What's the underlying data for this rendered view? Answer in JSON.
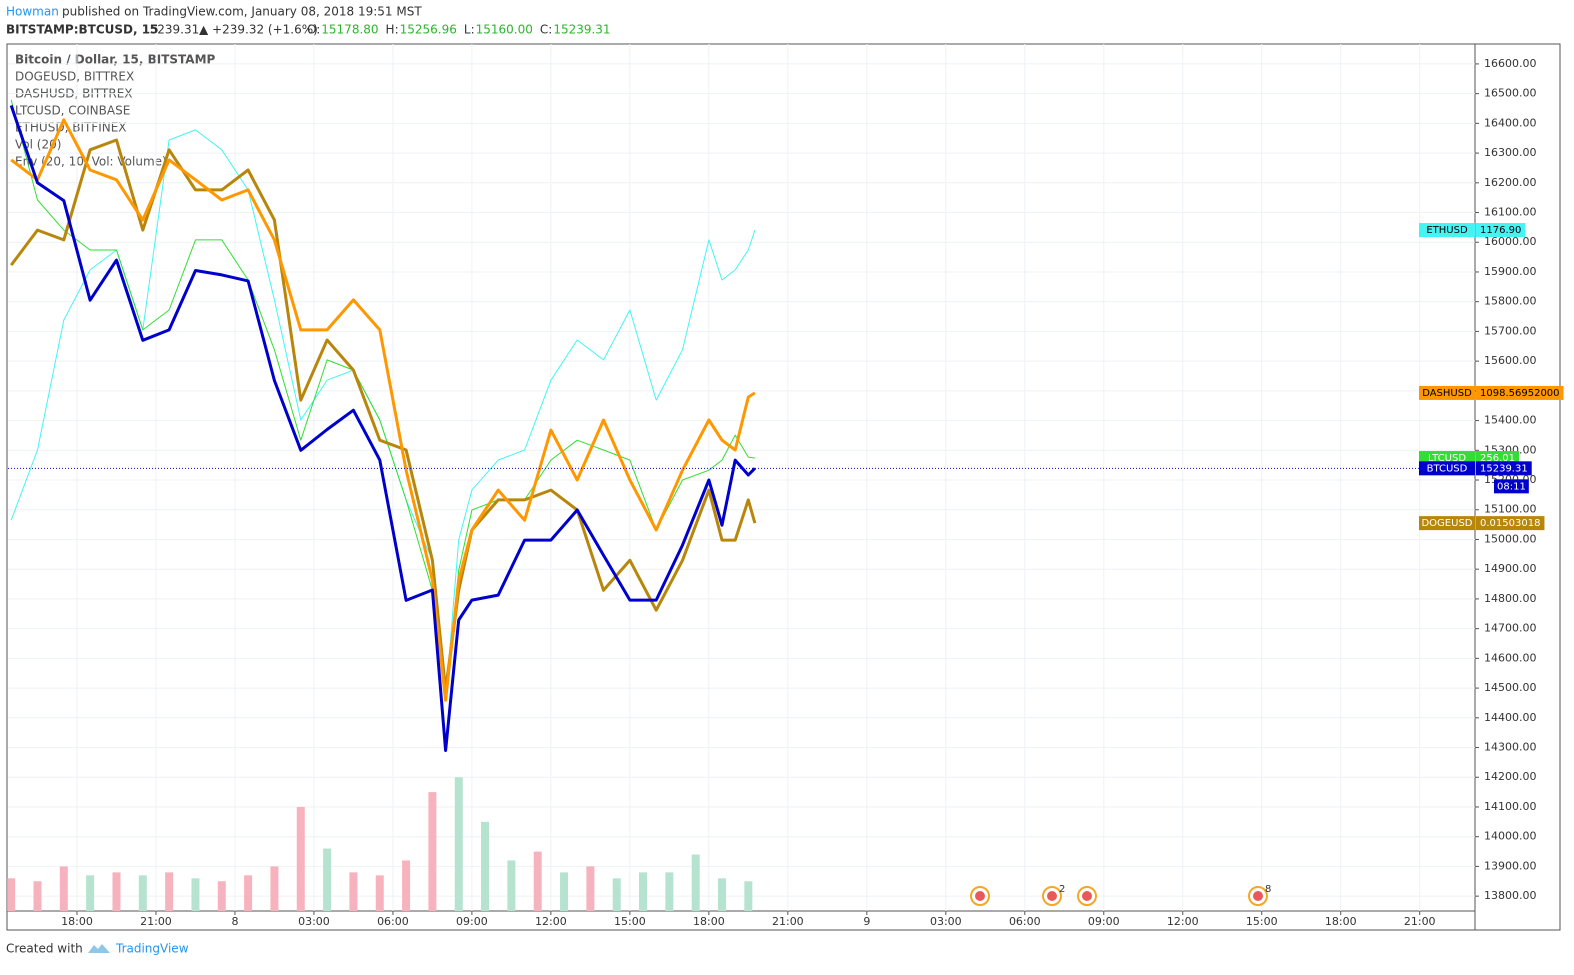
{
  "header": {
    "author": "Howman",
    "published": "published on TradingView.com, January 08, 2018 19:51 MST",
    "symbol": "BITSTAMP:BTCUSD, 15",
    "last": "15239.31",
    "change": "▲ +239.32 (+1.6%)",
    "ohlc": [
      {
        "key": "O:",
        "value": "15178.80"
      },
      {
        "key": "H:",
        "value": "15256.96"
      },
      {
        "key": "L:",
        "value": "15160.00"
      },
      {
        "key": "C:",
        "value": "15239.31"
      }
    ]
  },
  "legend": [
    "Bitcoin / Dollar, 15, BITSTAMP",
    "DOGEUSD, BITTREX",
    "DASHUSD, BITTREX",
    "LTCUSD, COINBASE",
    "ETHUSD, BITFINEX",
    "Vol (20)",
    "Env (20, 10, Vol: Volume)"
  ],
  "footer": {
    "created": "Created with",
    "brand": "TradingView"
  },
  "event_counts": [
    "2",
    "8"
  ],
  "chart_data": {
    "type": "line",
    "grid": true,
    "x": [
      15.5,
      16.5,
      17.5,
      18.5,
      19.5,
      20.5,
      21.5,
      22.5,
      23.5,
      24.5,
      25.5,
      26.5,
      27.5,
      28.5,
      29.5,
      30.5,
      31.5,
      32,
      32.5,
      33,
      34,
      35,
      36,
      37,
      38,
      39,
      40,
      41,
      42,
      42.5,
      43,
      43.5,
      43.75
    ],
    "xlim": [
      15.38,
      71.1
    ],
    "xticks": [
      {
        "value": 18,
        "label": "18:00"
      },
      {
        "value": 21,
        "label": "21:00"
      },
      {
        "value": 24,
        "label": "8"
      },
      {
        "value": 27,
        "label": "03:00"
      },
      {
        "value": 30,
        "label": "06:00"
      },
      {
        "value": 33,
        "label": "09:00"
      },
      {
        "value": 36,
        "label": "12:00"
      },
      {
        "value": 39,
        "label": "15:00"
      },
      {
        "value": 42,
        "label": "18:00"
      },
      {
        "value": 45,
        "label": "21:00"
      },
      {
        "value": 48,
        "label": "9"
      },
      {
        "value": 51,
        "label": "03:00"
      },
      {
        "value": 54,
        "label": "06:00"
      },
      {
        "value": 57,
        "label": "09:00"
      },
      {
        "value": 60,
        "label": "12:00"
      },
      {
        "value": 63,
        "label": "15:00"
      },
      {
        "value": 66,
        "label": "18:00"
      },
      {
        "value": 69,
        "label": "21:00"
      }
    ],
    "ylim": [
      13750,
      16667
    ],
    "yticks": [
      {
        "value": 13800,
        "label": "13800.00"
      },
      {
        "value": 13900,
        "label": "13900.00"
      },
      {
        "value": 14000,
        "label": "14000.00"
      },
      {
        "value": 14100,
        "label": "14100.00"
      },
      {
        "value": 14200,
        "label": "14200.00"
      },
      {
        "value": 14300,
        "label": "14300.00"
      },
      {
        "value": 14400,
        "label": "14400.00"
      },
      {
        "value": 14500,
        "label": "14500.00"
      },
      {
        "value": 14600,
        "label": "14600.00"
      },
      {
        "value": 14700,
        "label": "14700.00"
      },
      {
        "value": 14800,
        "label": "14800.00"
      },
      {
        "value": 14900,
        "label": "14900.00"
      },
      {
        "value": 15000,
        "label": "15000.00"
      },
      {
        "value": 15100,
        "label": "15100.00"
      },
      {
        "value": 15200,
        "label": "15200.00"
      },
      {
        "value": 15300,
        "label": "15300.00"
      },
      {
        "value": 15400,
        "label": "15400.00"
      },
      {
        "value": 15500,
        "label": "15500.00"
      },
      {
        "value": 15600,
        "label": "15600.00"
      },
      {
        "value": 15700,
        "label": "15700.00"
      },
      {
        "value": 15800,
        "label": "15800.00"
      },
      {
        "value": 15900,
        "label": "15900.00"
      },
      {
        "value": 16000,
        "label": "16000.00"
      },
      {
        "value": 16100,
        "label": "16100.00"
      },
      {
        "value": 16200,
        "label": "16200.00"
      },
      {
        "value": 16300,
        "label": "16300.00"
      },
      {
        "value": 16400,
        "label": "16400.00"
      },
      {
        "value": 16500,
        "label": "16500.00"
      },
      {
        "value": 16600,
        "label": "16600.00"
      }
    ],
    "series": [
      {
        "name": "ETHUSD",
        "color": "#44f4f4",
        "width": 1,
        "last_label": "1176.90",
        "values": [
          15065,
          15301,
          15738,
          15907,
          15974,
          15705,
          16344,
          16378,
          16311,
          16176,
          15806,
          15402,
          15536,
          15570,
          15402,
          15133,
          14930,
          14459,
          14998,
          15166,
          15267,
          15301,
          15536,
          15671,
          15604,
          15772,
          15469,
          15638,
          16008,
          15873,
          15907,
          15974,
          16041
        ]
      },
      {
        "name": "LTCUSD",
        "color": "#33dd33",
        "width": 1,
        "last_label": "256.01",
        "values": [
          16479,
          16142,
          16041,
          15974,
          15974,
          15705,
          15772,
          16008,
          16008,
          15873,
          15638,
          15334,
          15604,
          15570,
          15402,
          15133,
          14829,
          14459,
          14896,
          15099,
          15133,
          15133,
          15267,
          15334,
          15301,
          15267,
          15032,
          15200,
          15233,
          15267,
          15351,
          15277,
          15274
        ]
      },
      {
        "name": "DOGEUSD",
        "color": "#b8860b",
        "width": 3,
        "last_label": "0.01503018",
        "values": [
          15923,
          16041,
          16008,
          16311,
          16344,
          16041,
          16311,
          16176,
          16176,
          16243,
          16075,
          15469,
          15671,
          15570,
          15334,
          15301,
          14930,
          14493,
          14829,
          15032,
          15133,
          15133,
          15166,
          15099,
          14829,
          14930,
          14762,
          14930,
          15166,
          14998,
          14998,
          15133,
          15055
        ]
      },
      {
        "name": "DASHUSD",
        "color": "#ff9800",
        "width": 3,
        "last_label": "1098.56952000",
        "values": [
          16277,
          16210,
          16412,
          16243,
          16210,
          16075,
          16277,
          16210,
          16142,
          16176,
          16008,
          15705,
          15705,
          15806,
          15705,
          15233,
          14863,
          14459,
          14863,
          15032,
          15166,
          15065,
          15368,
          15200,
          15402,
          15200,
          15032,
          15233,
          15402,
          15334,
          15301,
          15479,
          15493
        ]
      },
      {
        "name": "BTCUSD",
        "color": "#0000cc",
        "width": 3,
        "countdown": "08:11",
        "values": [
          16460,
          16200,
          16140,
          15805,
          15940,
          15670,
          15705,
          15905,
          15890,
          15870,
          15535,
          15300,
          15370,
          15435,
          15267,
          14795,
          14830,
          14290,
          14729,
          14796,
          14813,
          14998,
          14998,
          15099,
          14947,
          14796,
          14796,
          14981,
          15200,
          15048,
          15267,
          15217,
          15239.31
        ]
      }
    ],
    "volume": {
      "x": [
        15.5,
        16.5,
        17.5,
        18.5,
        19.5,
        20.5,
        21.5,
        22.5,
        23.5,
        24.5,
        25.5,
        26.5,
        27.5,
        28.5,
        29.5,
        30.5,
        31.5,
        32.5,
        33.5,
        34.5,
        35.5,
        36.5,
        37.5,
        38.5,
        39.5,
        40.5,
        41.5,
        42.5,
        43.5
      ],
      "values": [
        13860,
        13850,
        13900,
        13870,
        13880,
        13870,
        13880,
        13860,
        13850,
        13870,
        13900,
        14100,
        13960,
        13880,
        13870,
        13920,
        14150,
        14200,
        14050,
        13920,
        13950,
        13880,
        13900,
        13860,
        13880,
        13880,
        13940,
        13860,
        13850
      ],
      "colors": [
        "#f7b3bd",
        "#f7b3bd",
        "#f7b3bd",
        "#b5e3cf",
        "#f7b3bd",
        "#b5e3cf",
        "#f7b3bd",
        "#b5e3cf",
        "#f7b3bd",
        "#f7b3bd",
        "#f7b3bd",
        "#f7b3bd",
        "#b5e3cf",
        "#f7b3bd",
        "#f7b3bd",
        "#f7b3bd",
        "#f7b3bd",
        "#b5e3cf",
        "#b5e3cf",
        "#b5e3cf",
        "#f7b3bd",
        "#b5e3cf",
        "#f7b3bd",
        "#b5e3cf",
        "#b5e3cf",
        "#b5e3cf",
        "#b5e3cf",
        "#b5e3cf",
        "#b5e3cf"
      ]
    }
  }
}
